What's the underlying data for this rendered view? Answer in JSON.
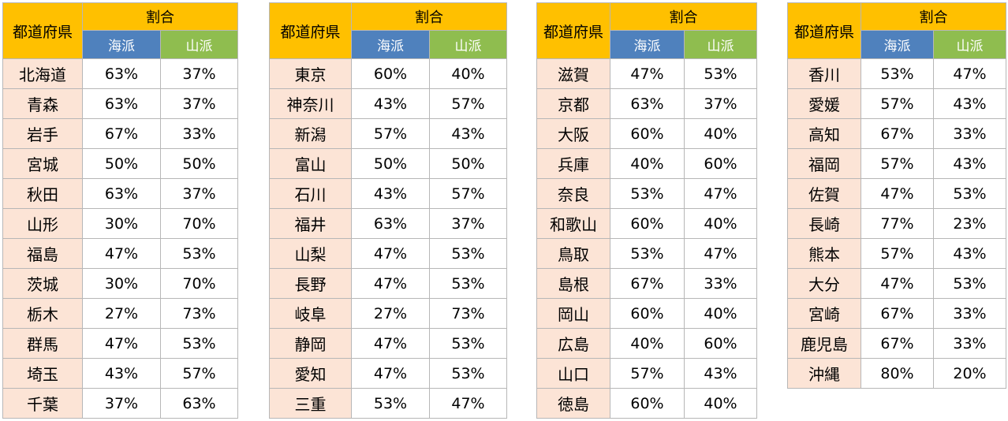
{
  "headers": {
    "prefecture": "都道府県",
    "ratio": "割合",
    "umi": "海派",
    "yama": "山派"
  },
  "colors": {
    "header_orange": "#ffc000",
    "umi_blue": "#4f81bd",
    "yama_green": "#8fbd4f",
    "pref_cell": "#fce4d6"
  },
  "tables": [
    {
      "rows": [
        {
          "pref": "北海道",
          "umi": "63%",
          "yama": "37%"
        },
        {
          "pref": "青森",
          "umi": "63%",
          "yama": "37%"
        },
        {
          "pref": "岩手",
          "umi": "67%",
          "yama": "33%"
        },
        {
          "pref": "宮城",
          "umi": "50%",
          "yama": "50%"
        },
        {
          "pref": "秋田",
          "umi": "63%",
          "yama": "37%"
        },
        {
          "pref": "山形",
          "umi": "30%",
          "yama": "70%"
        },
        {
          "pref": "福島",
          "umi": "47%",
          "yama": "53%"
        },
        {
          "pref": "茨城",
          "umi": "30%",
          "yama": "70%"
        },
        {
          "pref": "栃木",
          "umi": "27%",
          "yama": "73%"
        },
        {
          "pref": "群馬",
          "umi": "47%",
          "yama": "53%"
        },
        {
          "pref": "埼玉",
          "umi": "43%",
          "yama": "57%"
        },
        {
          "pref": "千葉",
          "umi": "37%",
          "yama": "63%"
        }
      ]
    },
    {
      "rows": [
        {
          "pref": "東京",
          "umi": "60%",
          "yama": "40%"
        },
        {
          "pref": "神奈川",
          "umi": "43%",
          "yama": "57%"
        },
        {
          "pref": "新潟",
          "umi": "57%",
          "yama": "43%"
        },
        {
          "pref": "富山",
          "umi": "50%",
          "yama": "50%"
        },
        {
          "pref": "石川",
          "umi": "43%",
          "yama": "57%"
        },
        {
          "pref": "福井",
          "umi": "63%",
          "yama": "37%"
        },
        {
          "pref": "山梨",
          "umi": "47%",
          "yama": "53%"
        },
        {
          "pref": "長野",
          "umi": "47%",
          "yama": "53%"
        },
        {
          "pref": "岐阜",
          "umi": "27%",
          "yama": "73%"
        },
        {
          "pref": "静岡",
          "umi": "47%",
          "yama": "53%"
        },
        {
          "pref": "愛知",
          "umi": "47%",
          "yama": "53%"
        },
        {
          "pref": "三重",
          "umi": "53%",
          "yama": "47%"
        }
      ]
    },
    {
      "rows": [
        {
          "pref": "滋賀",
          "umi": "47%",
          "yama": "53%"
        },
        {
          "pref": "京都",
          "umi": "63%",
          "yama": "37%"
        },
        {
          "pref": "大阪",
          "umi": "60%",
          "yama": "40%"
        },
        {
          "pref": "兵庫",
          "umi": "40%",
          "yama": "60%"
        },
        {
          "pref": "奈良",
          "umi": "53%",
          "yama": "47%"
        },
        {
          "pref": "和歌山",
          "umi": "60%",
          "yama": "40%"
        },
        {
          "pref": "鳥取",
          "umi": "53%",
          "yama": "47%"
        },
        {
          "pref": "島根",
          "umi": "67%",
          "yama": "33%"
        },
        {
          "pref": "岡山",
          "umi": "60%",
          "yama": "40%"
        },
        {
          "pref": "広島",
          "umi": "40%",
          "yama": "60%"
        },
        {
          "pref": "山口",
          "umi": "57%",
          "yama": "43%"
        },
        {
          "pref": "徳島",
          "umi": "60%",
          "yama": "40%"
        }
      ]
    },
    {
      "rows": [
        {
          "pref": "香川",
          "umi": "53%",
          "yama": "47%"
        },
        {
          "pref": "愛媛",
          "umi": "57%",
          "yama": "43%"
        },
        {
          "pref": "高知",
          "umi": "67%",
          "yama": "33%"
        },
        {
          "pref": "福岡",
          "umi": "57%",
          "yama": "43%"
        },
        {
          "pref": "佐賀",
          "umi": "47%",
          "yama": "53%"
        },
        {
          "pref": "長崎",
          "umi": "77%",
          "yama": "23%"
        },
        {
          "pref": "熊本",
          "umi": "57%",
          "yama": "43%"
        },
        {
          "pref": "大分",
          "umi": "47%",
          "yama": "53%"
        },
        {
          "pref": "宮崎",
          "umi": "67%",
          "yama": "33%"
        },
        {
          "pref": "鹿児島",
          "umi": "67%",
          "yama": "33%"
        },
        {
          "pref": "沖縄",
          "umi": "80%",
          "yama": "20%"
        }
      ]
    }
  ]
}
